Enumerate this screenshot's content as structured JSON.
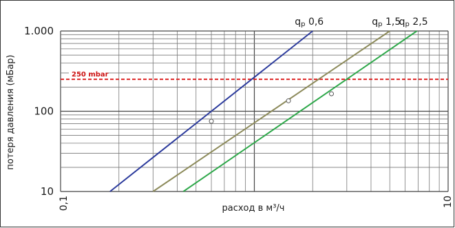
{
  "chart_data": {
    "type": "line",
    "x_scale": "log",
    "y_scale": "log",
    "xlim": [
      0.1,
      10
    ],
    "ylim": [
      10,
      1000
    ],
    "xlabel": "расход в м³/ч",
    "ylabel": "потеря давления (мБар)",
    "x_ticks": [
      {
        "value": 0.1,
        "label": "0,1"
      },
      {
        "value": 10,
        "label": "10"
      }
    ],
    "y_ticks": [
      {
        "value": 10,
        "label": "10"
      },
      {
        "value": 100,
        "label": "100"
      },
      {
        "value": 1000,
        "label": "1.000"
      }
    ],
    "grid": true,
    "series": [
      {
        "name": "qp 0,6",
        "name_main": "q",
        "name_sub": "p",
        "name_rest": " 0,6",
        "color": "#2b3a9c",
        "x": [
          0.18,
          2.0
        ],
        "y": [
          10,
          1000
        ],
        "marker": {
          "x": 0.6,
          "y": 75
        }
      },
      {
        "name": "qp 1,5",
        "name_main": "q",
        "name_sub": "p",
        "name_rest": " 1,5",
        "color": "#8c8a5a",
        "x": [
          0.3,
          5.0
        ],
        "y": [
          10,
          1000
        ],
        "marker": {
          "x": 1.5,
          "y": 135
        }
      },
      {
        "name": "qp 2,5",
        "name_main": "q",
        "name_sub": "p",
        "name_rest": " 2,5",
        "color": "#2ea84a",
        "x": [
          0.43,
          6.9
        ],
        "y": [
          10,
          1000
        ],
        "marker": {
          "x": 2.5,
          "y": 165
        }
      }
    ],
    "reference_lines": [
      {
        "axis": "y",
        "value": 250,
        "label": "250 mbar",
        "color": "#dd2222",
        "style": "dashed"
      }
    ]
  }
}
